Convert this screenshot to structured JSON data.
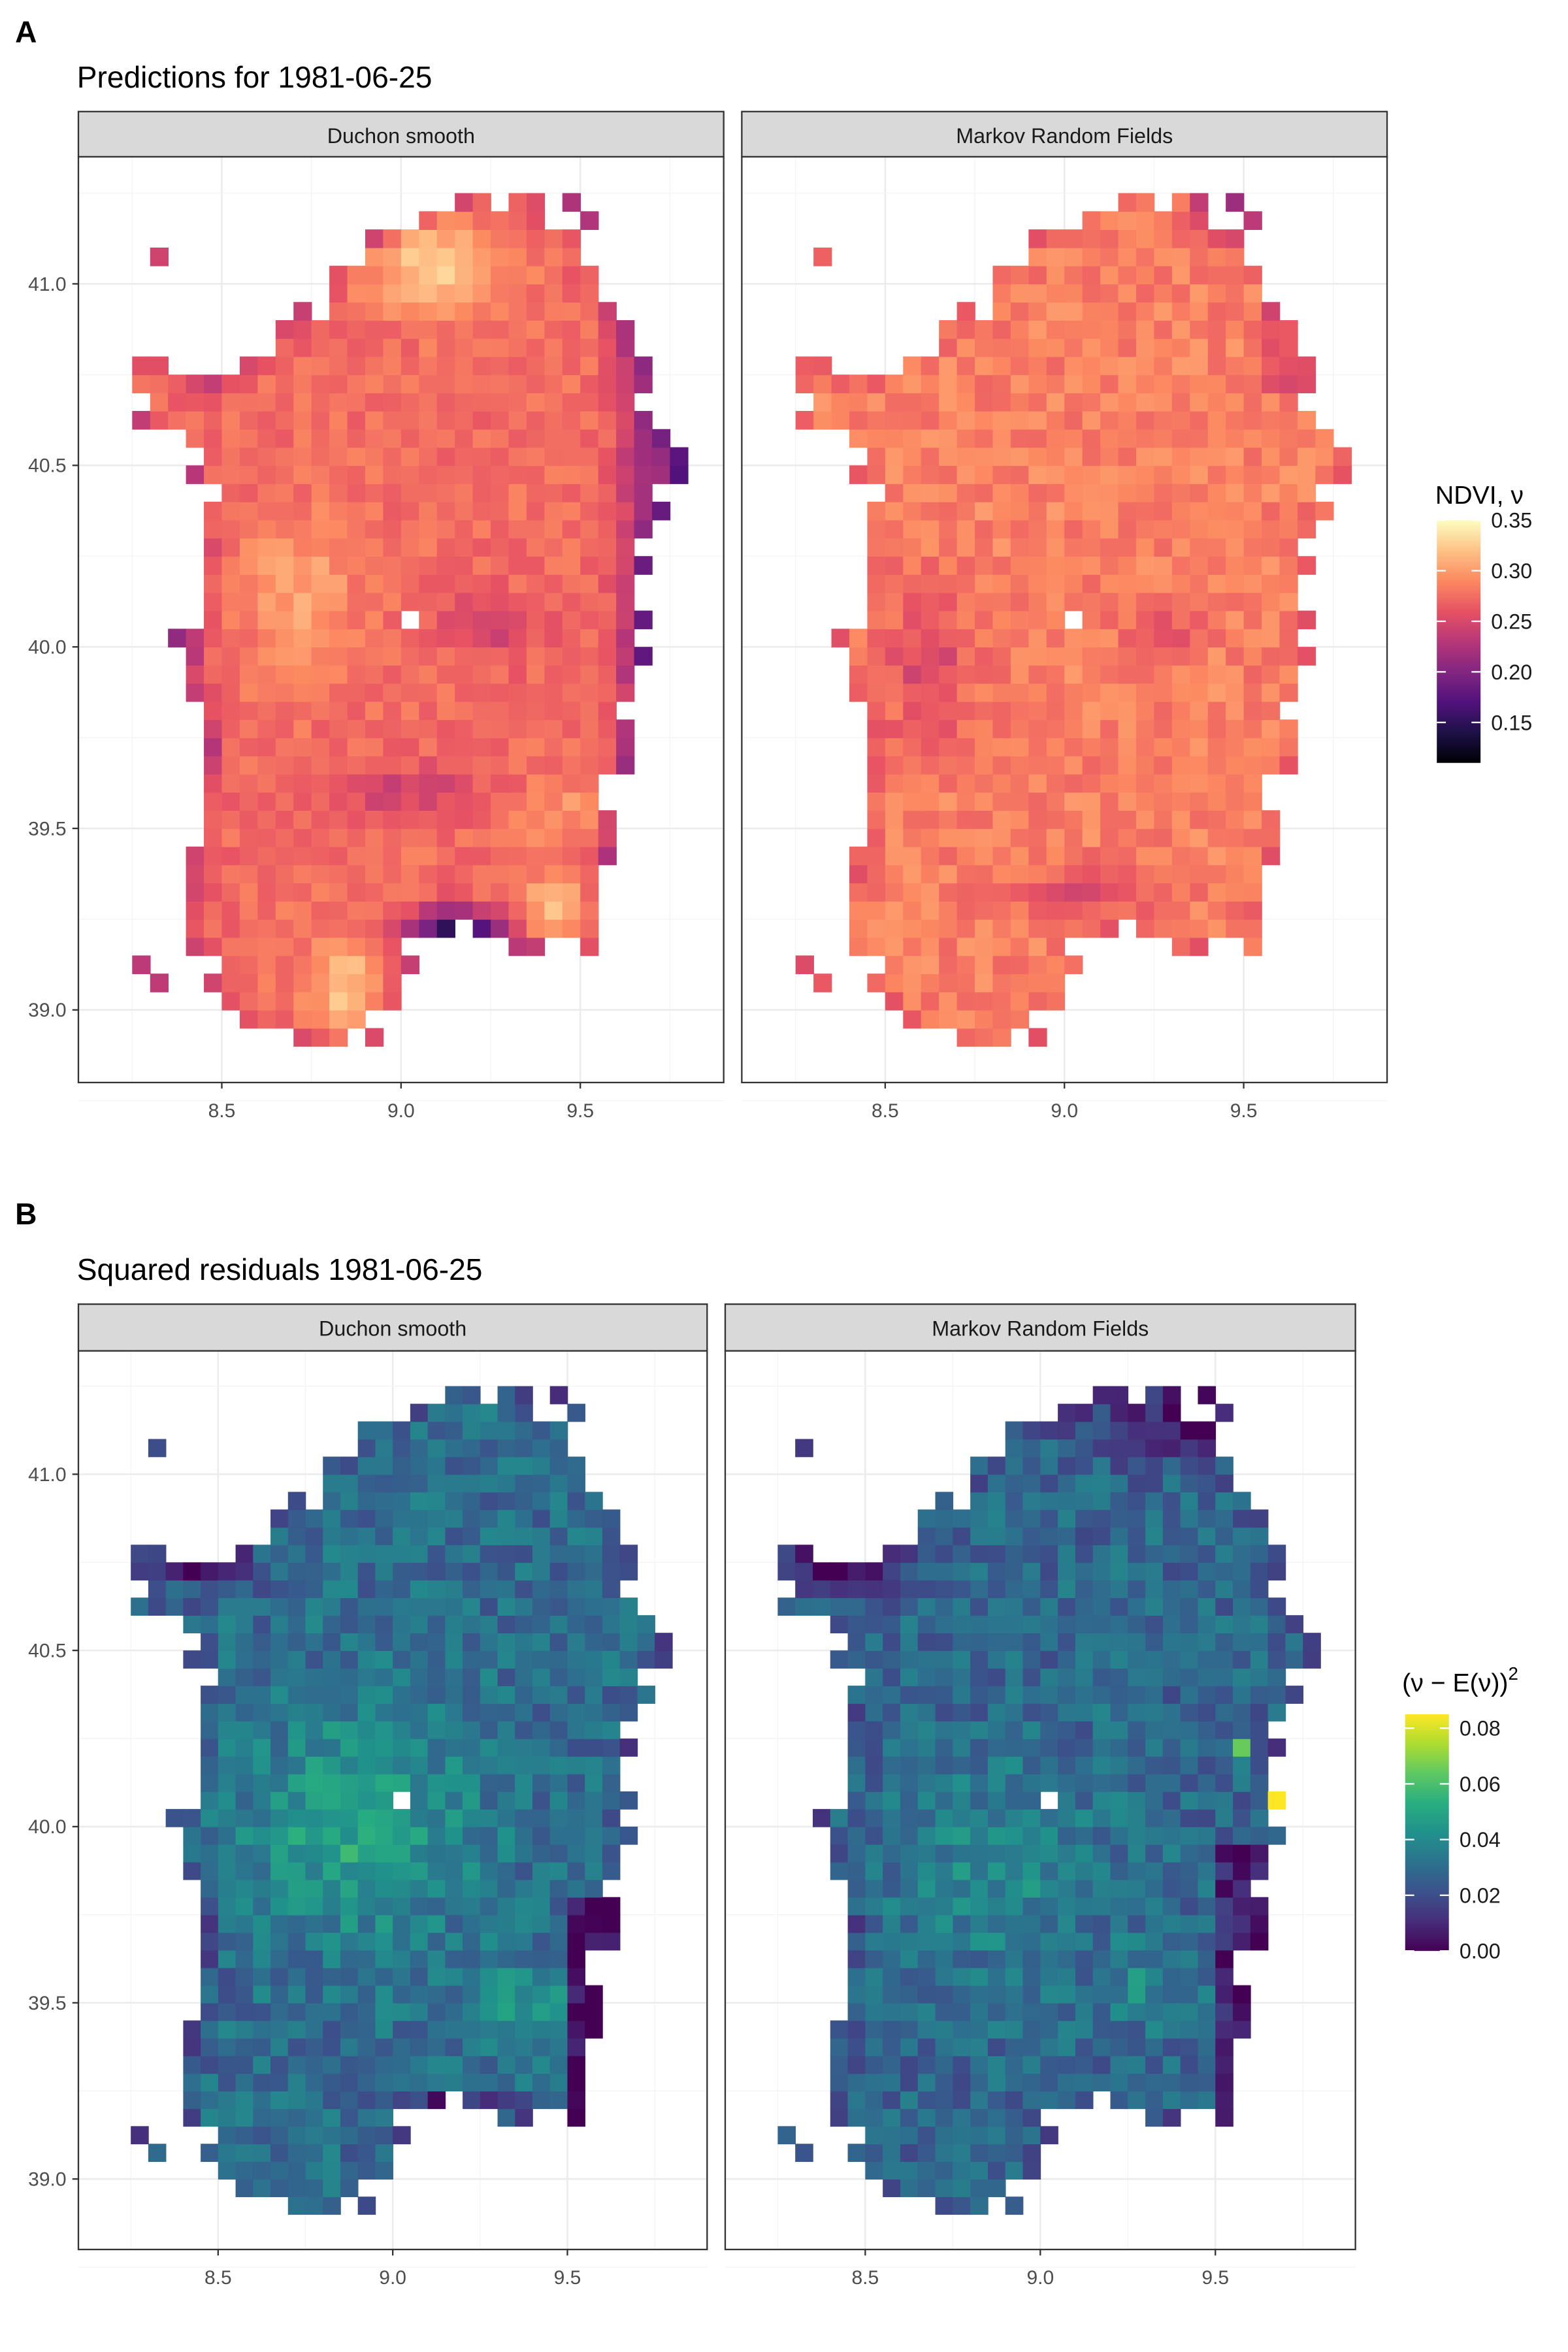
{
  "chart_data": [
    {
      "panel_tag": "A",
      "title": "Predictions for 1981-06-25",
      "type": "heatmap",
      "facets": [
        "Duchon smooth",
        "Markov Random Fields"
      ],
      "x_ticks": [
        "8.5",
        "9.0",
        "9.5"
      ],
      "y_ticks": [
        "39.0",
        "39.5",
        "40.0",
        "40.5",
        "41.0"
      ],
      "xlim": [
        8.1,
        9.9
      ],
      "ylim": [
        38.8,
        41.35
      ],
      "colorbar": {
        "title": "NDVI, ν",
        "palette": "magma",
        "range": [
          0.11,
          0.35
        ],
        "ticks": [
          "0.35",
          "0.30",
          "0.25",
          "0.20",
          "0.15"
        ],
        "tick_values": [
          0.35,
          0.3,
          0.25,
          0.2,
          0.15
        ]
      }
    },
    {
      "panel_tag": "B",
      "title": "Squared residuals 1981-06-25",
      "type": "heatmap",
      "facets": [
        "Duchon smooth",
        "Markov Random Fields"
      ],
      "x_ticks": [
        "8.5",
        "9.0",
        "9.5"
      ],
      "y_ticks": [
        "39.0",
        "39.5",
        "40.0",
        "40.5",
        "41.0"
      ],
      "xlim": [
        8.1,
        9.9
      ],
      "ylim": [
        38.8,
        41.35
      ],
      "colorbar": {
        "title": "(ν − E(ν))",
        "title_superscript": "2",
        "palette": "viridis",
        "range": [
          0.0,
          0.085
        ],
        "ticks": [
          "0.08",
          "0.06",
          "0.04",
          "0.02",
          "0.00"
        ],
        "tick_values": [
          0.08,
          0.06,
          0.04,
          0.02,
          0.0
        ]
      }
    }
  ]
}
